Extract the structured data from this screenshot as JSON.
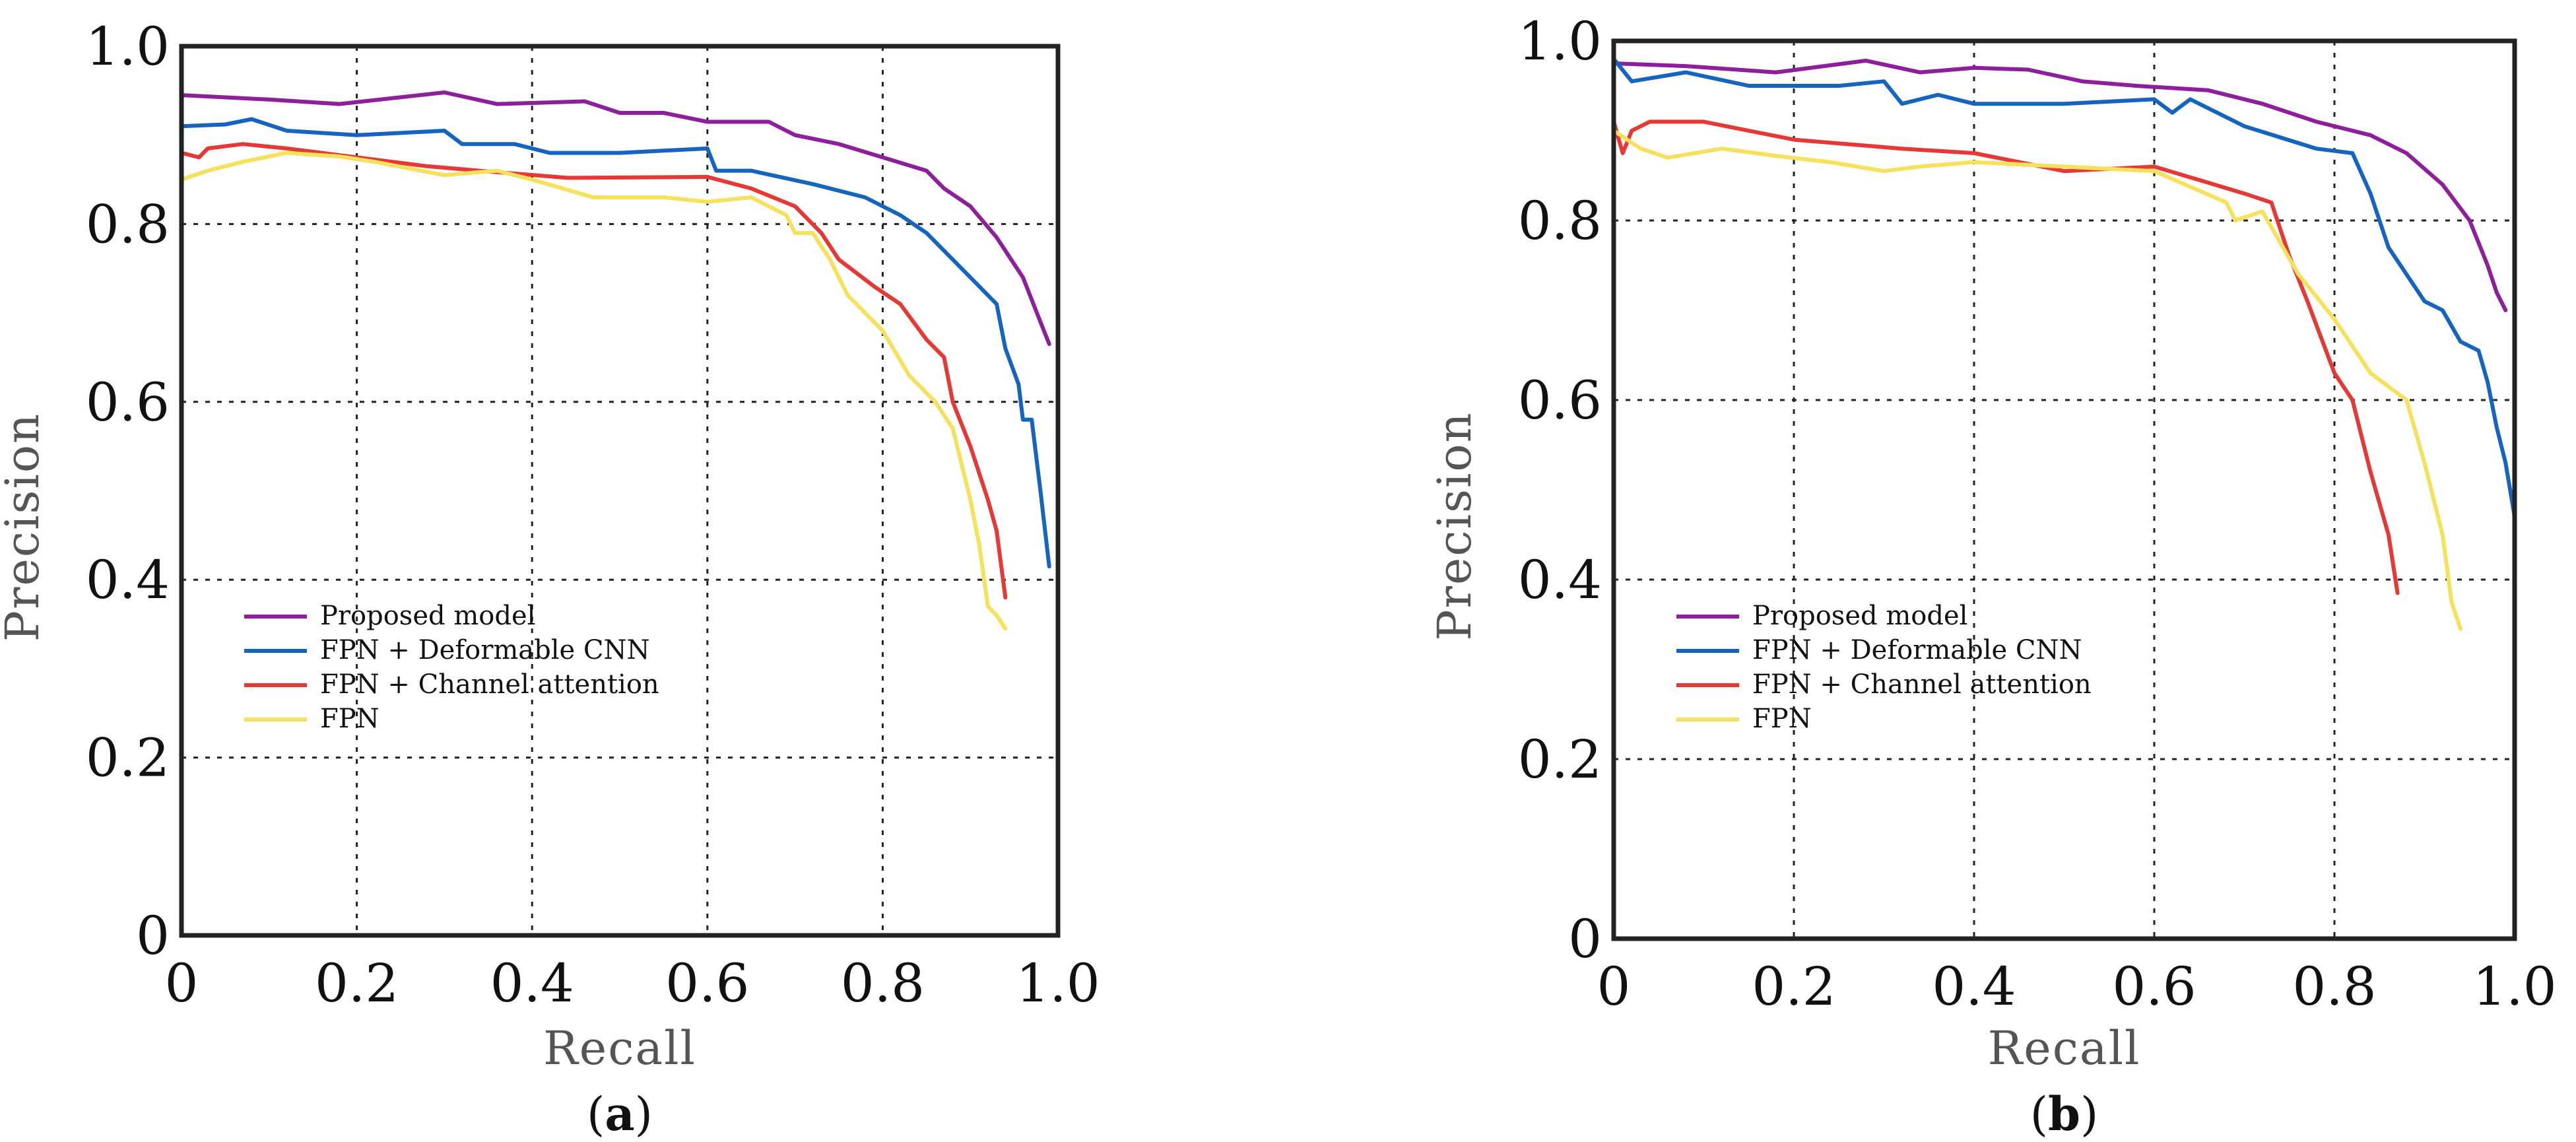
{
  "colors": {
    "Proposed model": "#8e1f9b",
    "FPN + Deformable CNN": "#1565c0",
    "FPN + Channel attention": "#e53935",
    "FPN": "#f5e15c"
  },
  "chart_data": [
    {
      "type": "line",
      "caption": "a",
      "xlabel": "Recall",
      "ylabel": "Precision",
      "xlim": [
        0,
        1.0
      ],
      "ylim": [
        0,
        1.0
      ],
      "xticks": [
        "0",
        "0.2",
        "0.4",
        "0.6",
        "0.8",
        "1.0"
      ],
      "yticks": [
        "0",
        "0.2",
        "0.4",
        "0.6",
        "0.8",
        "1.0"
      ],
      "grid": true,
      "legend_position": "lower-left",
      "series": [
        {
          "name": "Proposed model",
          "x": [
            0.0,
            0.1,
            0.18,
            0.3,
            0.36,
            0.46,
            0.5,
            0.55,
            0.6,
            0.67,
            0.7,
            0.75,
            0.8,
            0.85,
            0.87,
            0.9,
            0.93,
            0.96,
            0.98,
            0.99
          ],
          "y": [
            0.945,
            0.94,
            0.935,
            0.948,
            0.935,
            0.938,
            0.925,
            0.925,
            0.915,
            0.915,
            0.9,
            0.89,
            0.875,
            0.86,
            0.84,
            0.82,
            0.785,
            0.74,
            0.69,
            0.665
          ]
        },
        {
          "name": "FPN + Deformable CNN",
          "x": [
            0.0,
            0.05,
            0.08,
            0.12,
            0.2,
            0.3,
            0.32,
            0.38,
            0.42,
            0.5,
            0.6,
            0.61,
            0.65,
            0.72,
            0.78,
            0.82,
            0.85,
            0.9,
            0.93,
            0.94,
            0.955,
            0.96,
            0.97,
            0.98,
            0.99
          ],
          "y": [
            0.91,
            0.912,
            0.918,
            0.905,
            0.9,
            0.905,
            0.89,
            0.89,
            0.88,
            0.88,
            0.885,
            0.86,
            0.86,
            0.845,
            0.83,
            0.81,
            0.79,
            0.74,
            0.71,
            0.66,
            0.62,
            0.58,
            0.58,
            0.5,
            0.415
          ]
        },
        {
          "name": "FPN + Channel attention",
          "x": [
            0.0,
            0.02,
            0.03,
            0.07,
            0.12,
            0.2,
            0.28,
            0.34,
            0.44,
            0.6,
            0.65,
            0.7,
            0.73,
            0.75,
            0.79,
            0.82,
            0.85,
            0.87,
            0.88,
            0.9,
            0.92,
            0.93,
            0.94
          ],
          "y": [
            0.88,
            0.875,
            0.885,
            0.89,
            0.885,
            0.875,
            0.865,
            0.86,
            0.852,
            0.853,
            0.84,
            0.82,
            0.79,
            0.76,
            0.73,
            0.71,
            0.67,
            0.65,
            0.6,
            0.55,
            0.49,
            0.455,
            0.38
          ]
        },
        {
          "name": "FPN",
          "x": [
            0.0,
            0.03,
            0.07,
            0.12,
            0.18,
            0.22,
            0.3,
            0.36,
            0.4,
            0.47,
            0.55,
            0.6,
            0.65,
            0.69,
            0.7,
            0.72,
            0.74,
            0.76,
            0.8,
            0.83,
            0.86,
            0.88,
            0.9,
            0.91,
            0.92,
            0.93,
            0.94
          ],
          "y": [
            0.85,
            0.86,
            0.87,
            0.88,
            0.876,
            0.87,
            0.855,
            0.86,
            0.85,
            0.83,
            0.83,
            0.825,
            0.83,
            0.81,
            0.79,
            0.79,
            0.76,
            0.72,
            0.68,
            0.63,
            0.6,
            0.57,
            0.49,
            0.44,
            0.37,
            0.36,
            0.345
          ]
        }
      ],
      "legend": [
        "Proposed model",
        "FPN + Deformable CNN",
        "FPN + Channel attention",
        "FPN"
      ]
    },
    {
      "type": "line",
      "caption": "b",
      "xlabel": "Recall",
      "ylabel": "Precision",
      "xlim": [
        0,
        1.0
      ],
      "ylim": [
        0,
        1.0
      ],
      "xticks": [
        "0",
        "0.2",
        "0.4",
        "0.6",
        "0.8",
        "1.0"
      ],
      "yticks": [
        "0",
        "0.2",
        "0.4",
        "0.6",
        "0.8",
        "1.0"
      ],
      "grid": true,
      "legend_position": "lower-left",
      "series": [
        {
          "name": "Proposed model",
          "x": [
            0.0,
            0.08,
            0.18,
            0.28,
            0.34,
            0.4,
            0.46,
            0.52,
            0.58,
            0.66,
            0.72,
            0.78,
            0.84,
            0.88,
            0.92,
            0.95,
            0.97,
            0.98,
            0.99
          ],
          "y": [
            0.975,
            0.972,
            0.965,
            0.978,
            0.965,
            0.97,
            0.968,
            0.955,
            0.95,
            0.945,
            0.93,
            0.91,
            0.895,
            0.875,
            0.84,
            0.8,
            0.75,
            0.72,
            0.7
          ]
        },
        {
          "name": "FPN + Deformable CNN",
          "x": [
            0.0,
            0.02,
            0.08,
            0.15,
            0.25,
            0.3,
            0.32,
            0.36,
            0.4,
            0.5,
            0.6,
            0.62,
            0.64,
            0.7,
            0.78,
            0.82,
            0.84,
            0.86,
            0.9,
            0.92,
            0.94,
            0.96,
            0.97,
            0.98,
            0.99,
            1.0
          ],
          "y": [
            0.98,
            0.955,
            0.965,
            0.95,
            0.95,
            0.955,
            0.93,
            0.94,
            0.93,
            0.93,
            0.935,
            0.92,
            0.935,
            0.905,
            0.88,
            0.875,
            0.83,
            0.77,
            0.71,
            0.7,
            0.665,
            0.655,
            0.62,
            0.57,
            0.53,
            0.47
          ]
        },
        {
          "name": "FPN + Channel attention",
          "x": [
            0.0,
            0.01,
            0.02,
            0.04,
            0.1,
            0.2,
            0.32,
            0.4,
            0.45,
            0.5,
            0.6,
            0.65,
            0.7,
            0.73,
            0.75,
            0.77,
            0.8,
            0.82,
            0.84,
            0.86,
            0.87
          ],
          "y": [
            0.91,
            0.875,
            0.9,
            0.91,
            0.91,
            0.89,
            0.88,
            0.875,
            0.865,
            0.855,
            0.86,
            0.845,
            0.83,
            0.82,
            0.76,
            0.71,
            0.63,
            0.6,
            0.52,
            0.45,
            0.385
          ]
        },
        {
          "name": "FPN",
          "x": [
            0.0,
            0.03,
            0.06,
            0.12,
            0.18,
            0.24,
            0.3,
            0.34,
            0.4,
            0.5,
            0.6,
            0.68,
            0.69,
            0.72,
            0.76,
            0.8,
            0.84,
            0.88,
            0.9,
            0.92,
            0.93,
            0.94
          ],
          "y": [
            0.9,
            0.88,
            0.87,
            0.88,
            0.872,
            0.865,
            0.855,
            0.86,
            0.865,
            0.86,
            0.855,
            0.82,
            0.8,
            0.81,
            0.74,
            0.69,
            0.63,
            0.6,
            0.53,
            0.45,
            0.375,
            0.345
          ]
        }
      ],
      "legend": [
        "Proposed model",
        "FPN + Deformable CNN",
        "FPN + Channel attention",
        "FPN"
      ]
    }
  ]
}
